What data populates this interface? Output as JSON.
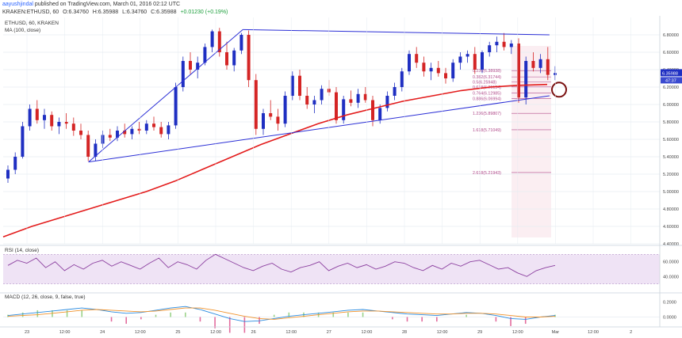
{
  "header": {
    "user": "aayushjindal",
    "published": "published on TradingView.com, March 01, 2016 02:12 UTC",
    "symbol": "KRAKEN:ETHUSD, 60",
    "open": "O:6.34760",
    "high": "H:6.35988",
    "low": "L:6.34760",
    "close": "C:6.35988",
    "change": "+0.01230 (+0.19%)"
  },
  "chart_data": [
    {
      "type": "candlestick",
      "pane": "price",
      "legend": [
        "ETHUSD, 60, KRAKEN",
        "MA (100, close)"
      ],
      "ylim": [
        4.4,
        7.0
      ],
      "y_ticks": [
        "6.80000",
        "6.60000",
        "6.40000",
        "6.20000",
        "6.00000",
        "5.80000",
        "5.60000",
        "5.40000",
        "5.20000",
        "5.00000",
        "4.80000",
        "4.60000",
        "4.40000"
      ],
      "last_price": "6.35988",
      "last_time": "47:37",
      "x_ticks": [
        "23",
        "12:00",
        "24",
        "12:00",
        "25",
        "12:00",
        "26",
        "12:00",
        "27",
        "12:00",
        "28",
        "12:00",
        "29",
        "12:00",
        "Mar",
        "12:00",
        "2"
      ],
      "fib_levels": [
        {
          "label": "0.236(6.38938)",
          "value": 6.389
        },
        {
          "label": "0.382(6.31744)",
          "value": 6.317
        },
        {
          "label": "0.5(6.25948)",
          "value": 6.259
        },
        {
          "label": "0.618(6.20154)",
          "value": 6.202
        },
        {
          "label": "0.764(6.12985)",
          "value": 6.13
        },
        {
          "label": "0.886(6.06994)",
          "value": 6.07
        },
        {
          "label": "1.236(5.89807)",
          "value": 5.898
        },
        {
          "label": "1.618(5.71049)",
          "value": 5.71
        },
        {
          "label": "2.618(5.21943)",
          "value": 5.219
        }
      ],
      "candles": [
        [
          5.15,
          5.3,
          5.1,
          5.25
        ],
        [
          5.25,
          5.45,
          5.2,
          5.4
        ],
        [
          5.4,
          5.8,
          5.38,
          5.75
        ],
        [
          5.75,
          6.0,
          5.7,
          5.95
        ],
        [
          5.95,
          6.05,
          5.78,
          5.82
        ],
        [
          5.82,
          5.95,
          5.72,
          5.88
        ],
        [
          5.88,
          5.92,
          5.7,
          5.75
        ],
        [
          5.75,
          5.85,
          5.66,
          5.8
        ],
        [
          5.8,
          5.9,
          5.72,
          5.78
        ],
        [
          5.78,
          5.85,
          5.64,
          5.7
        ],
        [
          5.7,
          5.78,
          5.6,
          5.65
        ],
        [
          5.65,
          5.7,
          5.35,
          5.4
        ],
        [
          5.4,
          5.6,
          5.35,
          5.55
        ],
        [
          5.55,
          5.7,
          5.5,
          5.65
        ],
        [
          5.65,
          5.72,
          5.58,
          5.62
        ],
        [
          5.62,
          5.75,
          5.58,
          5.7
        ],
        [
          5.7,
          5.78,
          5.62,
          5.66
        ],
        [
          5.66,
          5.75,
          5.6,
          5.72
        ],
        [
          5.72,
          5.8,
          5.66,
          5.7
        ],
        [
          5.7,
          5.82,
          5.66,
          5.78
        ],
        [
          5.78,
          5.86,
          5.7,
          5.74
        ],
        [
          5.74,
          5.8,
          5.62,
          5.66
        ],
        [
          5.66,
          5.8,
          5.6,
          5.76
        ],
        [
          5.76,
          6.25,
          5.72,
          6.2
        ],
        [
          6.2,
          6.55,
          6.15,
          6.5
        ],
        [
          6.5,
          6.6,
          6.35,
          6.4
        ],
        [
          6.4,
          6.55,
          6.3,
          6.48
        ],
        [
          6.48,
          6.7,
          6.45,
          6.66
        ],
        [
          6.66,
          6.86,
          6.6,
          6.84
        ],
        [
          6.84,
          6.88,
          6.55,
          6.6
        ],
        [
          6.6,
          6.72,
          6.4,
          6.45
        ],
        [
          6.45,
          6.65,
          6.38,
          6.62
        ],
        [
          6.62,
          6.82,
          6.58,
          6.8
        ],
        [
          6.8,
          6.85,
          6.2,
          6.28
        ],
        [
          6.28,
          6.35,
          5.65,
          5.72
        ],
        [
          5.72,
          5.95,
          5.65,
          5.9
        ],
        [
          5.9,
          6.05,
          5.82,
          5.86
        ],
        [
          5.86,
          5.95,
          5.7,
          5.78
        ],
        [
          5.78,
          6.15,
          5.74,
          6.1
        ],
        [
          6.1,
          6.38,
          6.05,
          6.33
        ],
        [
          6.33,
          6.4,
          6.05,
          6.1
        ],
        [
          6.1,
          6.2,
          5.95,
          6.0
        ],
        [
          6.0,
          6.1,
          5.9,
          6.05
        ],
        [
          6.05,
          6.22,
          6.0,
          6.18
        ],
        [
          6.18,
          6.28,
          6.1,
          6.14
        ],
        [
          6.14,
          6.2,
          5.78,
          5.82
        ],
        [
          5.82,
          6.1,
          5.78,
          6.06
        ],
        [
          6.06,
          6.16,
          5.98,
          6.02
        ],
        [
          6.02,
          6.18,
          5.96,
          6.12
        ],
        [
          6.12,
          6.2,
          6.02,
          6.05
        ],
        [
          6.05,
          6.1,
          5.75,
          5.82
        ],
        [
          5.82,
          6.0,
          5.78,
          5.96
        ],
        [
          5.96,
          6.15,
          5.92,
          6.1
        ],
        [
          6.1,
          6.25,
          6.05,
          6.2
        ],
        [
          6.2,
          6.42,
          6.15,
          6.38
        ],
        [
          6.38,
          6.62,
          6.34,
          6.58
        ],
        [
          6.58,
          6.66,
          6.42,
          6.48
        ],
        [
          6.48,
          6.55,
          6.32,
          6.38
        ],
        [
          6.38,
          6.48,
          6.28,
          6.42
        ],
        [
          6.42,
          6.5,
          6.32,
          6.36
        ],
        [
          6.36,
          6.42,
          6.24,
          6.3
        ],
        [
          6.3,
          6.52,
          6.26,
          6.48
        ],
        [
          6.48,
          6.6,
          6.4,
          6.55
        ],
        [
          6.55,
          6.62,
          6.48,
          6.58
        ],
        [
          6.58,
          6.66,
          6.35,
          6.4
        ],
        [
          6.4,
          6.62,
          6.36,
          6.6
        ],
        [
          6.6,
          6.72,
          6.55,
          6.68
        ],
        [
          6.68,
          6.78,
          6.6,
          6.72
        ],
        [
          6.72,
          6.82,
          6.62,
          6.66
        ],
        [
          6.66,
          6.74,
          6.58,
          6.7
        ],
        [
          6.7,
          6.76,
          6.02,
          6.08
        ],
        [
          6.08,
          6.55,
          6.0,
          6.5
        ],
        [
          6.5,
          6.6,
          6.38,
          6.42
        ],
        [
          6.42,
          6.58,
          6.36,
          6.52
        ],
        [
          6.52,
          6.66,
          6.28,
          6.34
        ],
        [
          6.34,
          6.44,
          6.28,
          6.36
        ]
      ],
      "ma": [
        4.48,
        4.6,
        4.7,
        4.8,
        4.9,
        5.0,
        5.12,
        5.26,
        5.4,
        5.54,
        5.66,
        5.78,
        5.88,
        5.96,
        6.04,
        6.1,
        6.16,
        6.2,
        6.22,
        6.23
      ],
      "trendlines": [
        {
          "from": [
            0.13,
            5.34
          ],
          "to": [
            0.365,
            6.86
          ]
        },
        {
          "from": [
            0.365,
            6.86
          ],
          "to": [
            0.832,
            6.8
          ]
        },
        {
          "from": [
            0.13,
            5.34
          ],
          "to": [
            0.832,
            6.1
          ]
        }
      ]
    },
    {
      "type": "line",
      "pane": "rsi",
      "legend": "RSI (14, close)",
      "ylim": [
        20,
        80
      ],
      "y_ticks": [
        "60.0000",
        "40.0000"
      ],
      "values": [
        55,
        62,
        58,
        65,
        52,
        60,
        48,
        56,
        50,
        58,
        62,
        54,
        60,
        55,
        50,
        58,
        65,
        52,
        60,
        56,
        50,
        62,
        70,
        64,
        58,
        52,
        48,
        54,
        58,
        50,
        46,
        52,
        55,
        60,
        48,
        54,
        58,
        52,
        56,
        50,
        54,
        60,
        58,
        52,
        48,
        55,
        50,
        58,
        54,
        60,
        62,
        56,
        50,
        52,
        45,
        40,
        48,
        52,
        55
      ]
    },
    {
      "type": "line",
      "pane": "macd",
      "legend": "MACD (12, 26, close, 9, false, true)",
      "ylim": [
        -0.1,
        0.3
      ],
      "y_ticks": [
        "0.2000",
        "0.0000"
      ],
      "macd": [
        0.02,
        0.04,
        0.06,
        0.08,
        0.1,
        0.12,
        0.1,
        0.07,
        0.05,
        0.06,
        0.09,
        0.12,
        0.14,
        0.1,
        0.04,
        -0.02,
        -0.06,
        -0.05,
        -0.02,
        0.01,
        0.03,
        0.05,
        0.07,
        0.09,
        0.1,
        0.08,
        0.06,
        0.04,
        0.03,
        0.02,
        0.04,
        0.06,
        0.05,
        0.02,
        -0.02,
        -0.03,
        0.0,
        0.02
      ],
      "signal": [
        0.01,
        0.02,
        0.03,
        0.05,
        0.07,
        0.09,
        0.1,
        0.09,
        0.08,
        0.07,
        0.08,
        0.1,
        0.12,
        0.12,
        0.09,
        0.05,
        0.01,
        -0.02,
        -0.03,
        -0.01,
        0.01,
        0.03,
        0.05,
        0.07,
        0.08,
        0.08,
        0.07,
        0.06,
        0.05,
        0.04,
        0.04,
        0.05,
        0.05,
        0.04,
        0.02,
        0.0,
        0.0,
        0.01
      ]
    }
  ],
  "colors": {
    "bull": "#1f2fc2",
    "bear": "#d42525",
    "ma": "#e31b1b",
    "trend": "#2b2fd6",
    "rsi": "#8b3f9f",
    "rsi_bg": "#efe3f5",
    "fib": "#b04a8a",
    "macd": "#2a8be0",
    "signal": "#f0922b",
    "grid": "#e6ecf2"
  }
}
